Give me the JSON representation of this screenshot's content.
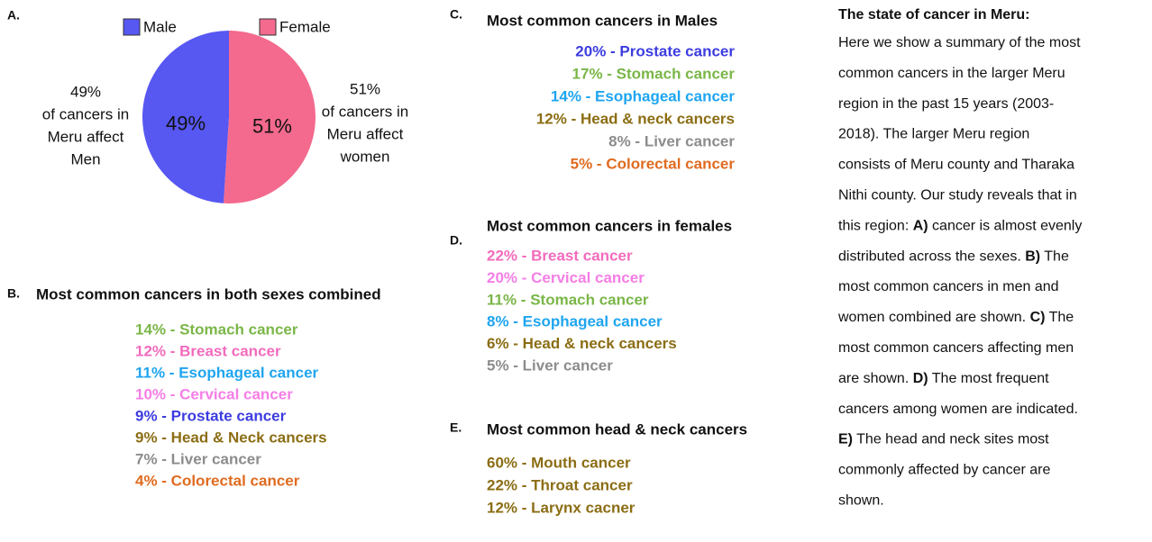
{
  "chart_data": {
    "type": "pie",
    "label": "A.",
    "categories": [
      "Male",
      "Female"
    ],
    "values": [
      49,
      51
    ],
    "value_labels": [
      "49%",
      "51%"
    ],
    "colors": [
      "#5757f2",
      "#f36a8e"
    ],
    "annotations": [
      [
        "49%",
        "of cancers in",
        "Meru affect",
        "Men"
      ],
      [
        "51%",
        "of cancers in",
        "Meru affect",
        "women"
      ]
    ]
  },
  "sections": [
    {
      "label": "B.",
      "title": "Most common cancers in both sexes combined",
      "items": [
        {
          "text": "14% - Stomach cancer",
          "color": "#7ab648"
        },
        {
          "text": "12% - Breast cancer",
          "color": "#f26bbd"
        },
        {
          "text": "11% - Esophageal cancer",
          "color": "#1ea5f0"
        },
        {
          "text": "10% - Cervical cancer",
          "color": "#f57ee6"
        },
        {
          "text": "9% - Prostate cancer",
          "color": "#3c3ce0"
        },
        {
          "text": "9% - Head & Neck cancers",
          "color": "#8b6d14"
        },
        {
          "text": "7% - Liver cancer",
          "color": "#8c8c8c"
        },
        {
          "text": "4% - Colorectal cancer",
          "color": "#e06b1f"
        }
      ]
    },
    {
      "label": "C.",
      "title": "Most common cancers in Males",
      "items": [
        {
          "text": "20% - Prostate cancer",
          "color": "#3c3ce0"
        },
        {
          "text": "17% - Stomach cancer",
          "color": "#7ab648"
        },
        {
          "text": "14% - Esophageal cancer",
          "color": "#1ea5f0"
        },
        {
          "text": "12% - Head & neck cancers",
          "color": "#8b6d14"
        },
        {
          "text": "8% - Liver cancer",
          "color": "#8c8c8c"
        },
        {
          "text": "5% - Colorectal cancer",
          "color": "#e06b1f"
        }
      ]
    },
    {
      "label": "D.",
      "title": "Most common cancers in females",
      "items": [
        {
          "text": "22% - Breast cancer",
          "color": "#f26bbd"
        },
        {
          "text": "20% - Cervical cancer",
          "color": "#f57ee6"
        },
        {
          "text": "11% - Stomach cancer",
          "color": "#7ab648"
        },
        {
          "text": "8% - Esophageal cancer",
          "color": "#1ea5f0"
        },
        {
          "text": "6% - Head & neck cancers",
          "color": "#8b6d14"
        },
        {
          "text": "5% - Liver cancer",
          "color": "#8c8c8c"
        }
      ]
    },
    {
      "label": "E.",
      "title": "Most common head & neck cancers",
      "items": [
        {
          "text": "60% - Mouth cancer",
          "color": "#8b6d14"
        },
        {
          "text": "22% - Throat cancer",
          "color": "#8b6d14"
        },
        {
          "text": "12% - Larynx cacner",
          "color": "#8b6d14"
        }
      ]
    }
  ],
  "summary": {
    "title": "The state of cancer in Meru:",
    "lines": [
      [
        {
          "text": "Here we show a summary of the most"
        }
      ],
      [
        {
          "text": "common cancers in the larger Meru"
        }
      ],
      [
        {
          "text": "region in the past 15 years (2003-"
        }
      ],
      [
        {
          "text": "2018). The larger Meru region"
        }
      ],
      [
        {
          "text": "consists of Meru county and Tharaka"
        }
      ],
      [
        {
          "text": "Nithi county. Our study reveals that in"
        }
      ],
      [
        {
          "text": "this region: "
        },
        {
          "text": "A)",
          "bold": true
        },
        {
          "text": " cancer is almost evenly"
        }
      ],
      [
        {
          "text": "distributed across the sexes. "
        },
        {
          "text": "B)",
          "bold": true
        },
        {
          "text": " The"
        }
      ],
      [
        {
          "text": "most common cancers in men and"
        }
      ],
      [
        {
          "text": "women combined are shown. "
        },
        {
          "text": "C)",
          "bold": true
        },
        {
          "text": " The"
        }
      ],
      [
        {
          "text": "most common cancers affecting men"
        }
      ],
      [
        {
          "text": "are shown. "
        },
        {
          "text": "D)",
          "bold": true
        },
        {
          "text": " The most frequent"
        }
      ],
      [
        {
          "text": "cancers among women are indicated."
        }
      ],
      [
        {
          "text": "E)",
          "bold": true
        },
        {
          "text": " The head and neck sites most"
        }
      ],
      [
        {
          "text": "commonly affected by cancer are"
        }
      ],
      [
        {
          "text": "shown."
        }
      ]
    ]
  }
}
